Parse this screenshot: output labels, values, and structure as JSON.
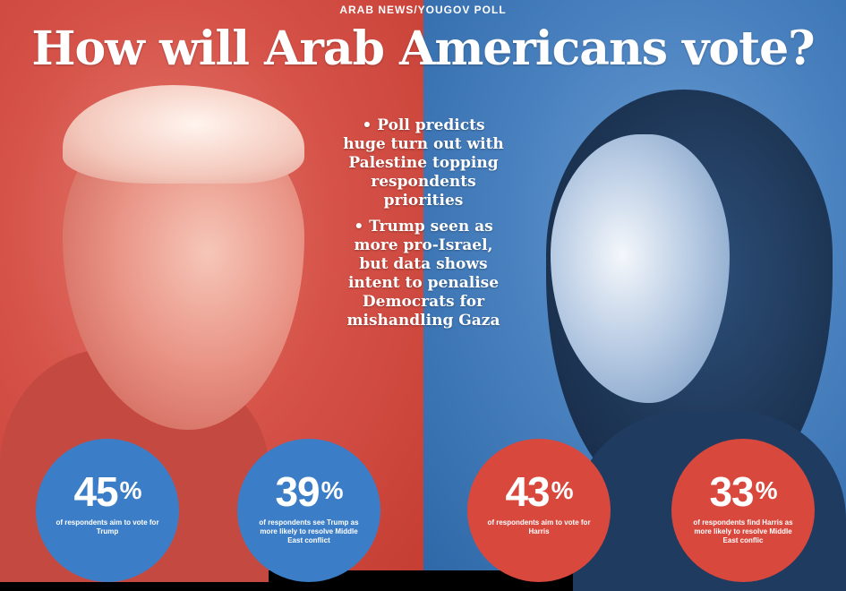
{
  "header": {
    "kicker": "ARAB NEWS/YOUGOV POLL",
    "headline": "How will Arab Americans vote?"
  },
  "bullets": [
    "• Poll predicts huge turn out with Palestine topping respondents priorities",
    "• Trump seen as more pro-Israel, but data shows intent to penalise Democrats for mishandling Gaza"
  ],
  "stats": [
    {
      "value": "45",
      "unit": "%",
      "caption": "of respondents aim to vote for Trump",
      "color": "#3b7ec7"
    },
    {
      "value": "39",
      "unit": "%",
      "caption": "of respondents see Trump as more likely to resolve Middle East conflict",
      "color": "#3b7ec7"
    },
    {
      "value": "43",
      "unit": "%",
      "caption": "of respondents aim to vote for Harris",
      "color": "#d9483d"
    },
    {
      "value": "33",
      "unit": "%",
      "caption": "of respondents find Harris as more likely to resolve Middle East conflic",
      "color": "#d9483d"
    }
  ],
  "colors": {
    "left_background": "#d65349",
    "right_background": "#4a82c0"
  }
}
